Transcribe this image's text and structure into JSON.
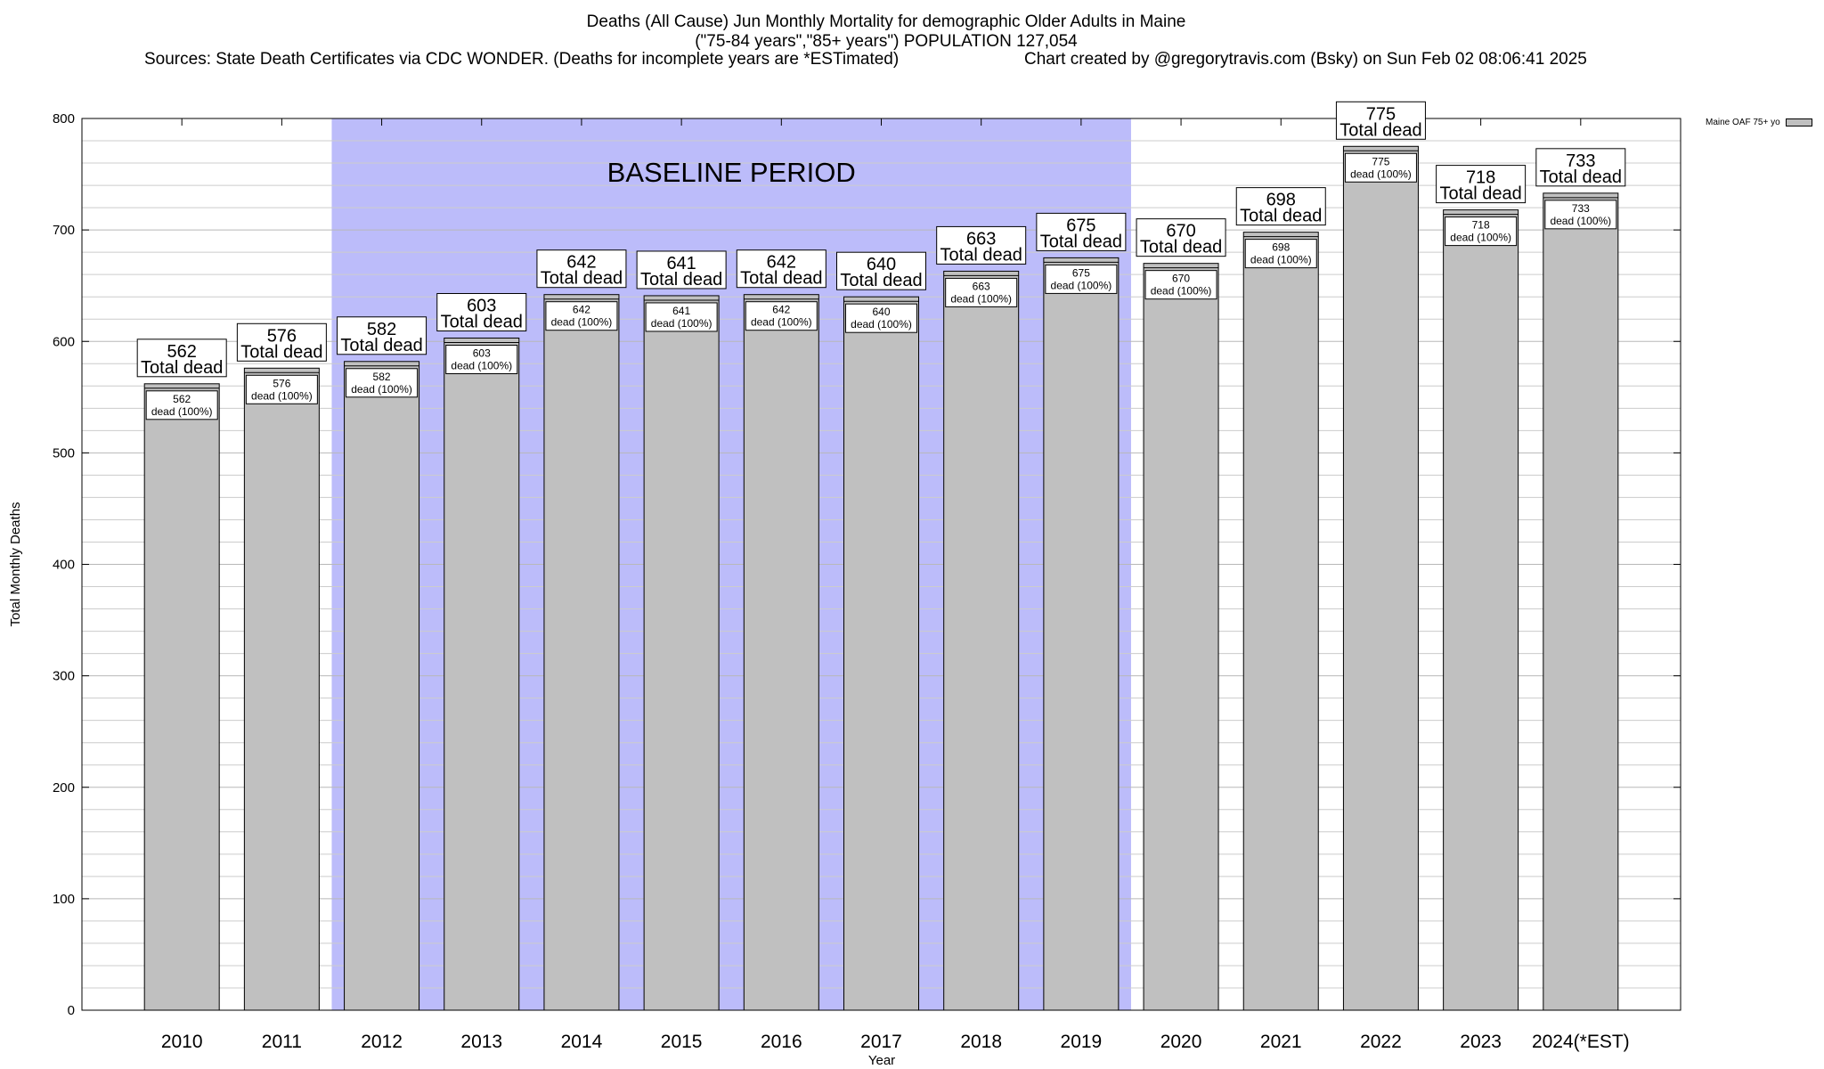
{
  "title_lines": [
    "Deaths (All Cause) Jun Monthly Mortality for demographic Older Adults in Maine",
    "(\"75-84 years\",\"85+ years\") POPULATION 127,054"
  ],
  "source_line": "Sources: State Death Certificates via CDC WONDER. (Deaths for incomplete years are *ESTimated)",
  "credit_line": "Chart created by @gregorytravis.com (Bsky) on Sun Feb 02 08:06:41 2025",
  "legend": {
    "label": "Maine OAF 75+ yo"
  },
  "colors": {
    "bar": "#c0c0c0",
    "baseline_band": "#bcbcfa",
    "grid": "#cccccc"
  },
  "chart_data": {
    "type": "bar",
    "categories": [
      "2010",
      "2011",
      "2012",
      "2013",
      "2014",
      "2015",
      "2016",
      "2017",
      "2018",
      "2019",
      "2020",
      "2021",
      "2022",
      "2023",
      "2024(*EST)"
    ],
    "series": [
      {
        "name": "Maine OAF 75+ yo",
        "values": [
          562,
          576,
          582,
          603,
          642,
          641,
          642,
          640,
          663,
          675,
          670,
          698,
          775,
          718,
          733
        ]
      }
    ],
    "inner_label_suffix": "dead (100%)",
    "outer_label_suffix": "Total dead",
    "baseline": {
      "label": "BASELINE PERIOD",
      "from": "2012",
      "to": "2019"
    },
    "xlabel": "Year",
    "ylabel": "Total Monthly Deaths",
    "ylim": [
      0,
      800
    ],
    "yticks": [
      0,
      100,
      200,
      300,
      400,
      500,
      600,
      700,
      800
    ],
    "grid": true,
    "legend_position": "top-right"
  }
}
